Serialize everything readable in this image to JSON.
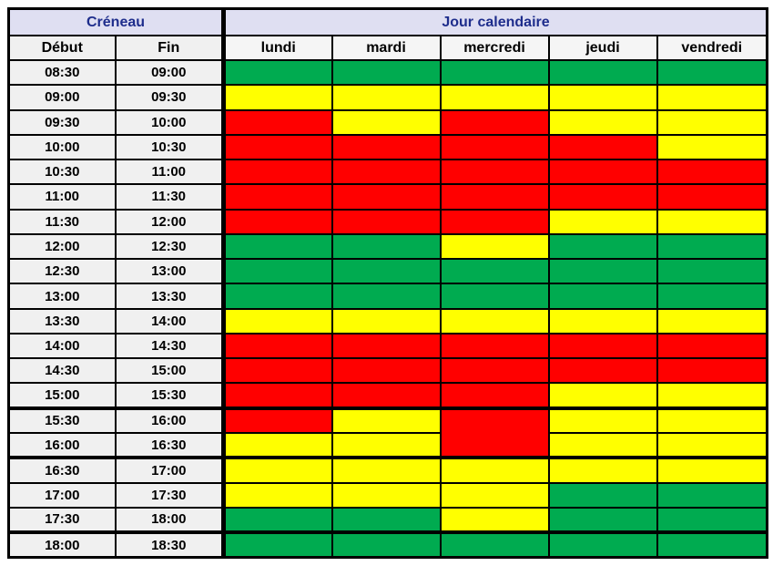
{
  "header": {
    "creneau_label": "Créneau",
    "jour_label": "Jour calendaire",
    "debut_label": "Début",
    "fin_label": "Fin",
    "days": [
      "lundi",
      "mardi",
      "mercredi",
      "jeudi",
      "vendredi"
    ]
  },
  "colors": {
    "slot_green": "#00ab50",
    "slot_yellow": "#ffff00",
    "slot_red": "#ff0000",
    "group_header_bg": "#dfdff2",
    "group_header_text": "#1e2d8c",
    "time_cell_bg": "#f0f0f0",
    "day_header_bg": "#f5f5f5",
    "border": "#000000"
  },
  "rows": [
    {
      "debut": "08:30",
      "fin": "09:00",
      "cells": [
        "G",
        "G",
        "G",
        "G",
        "G"
      ]
    },
    {
      "debut": "09:00",
      "fin": "09:30",
      "cells": [
        "Y",
        "Y",
        "Y",
        "Y",
        "Y"
      ]
    },
    {
      "debut": "09:30",
      "fin": "10:00",
      "cells": [
        "R",
        "Y",
        "R",
        "Y",
        "Y"
      ]
    },
    {
      "debut": "10:00",
      "fin": "10:30",
      "cells": [
        "R",
        "R",
        "R",
        "R",
        "Y"
      ]
    },
    {
      "debut": "10:30",
      "fin": "11:00",
      "cells": [
        "R",
        "R",
        "R",
        "R",
        "R"
      ]
    },
    {
      "debut": "11:00",
      "fin": "11:30",
      "cells": [
        "R",
        "R",
        "R",
        "R",
        "R"
      ]
    },
    {
      "debut": "11:30",
      "fin": "12:00",
      "cells": [
        "R",
        "R",
        "R",
        "Y",
        "Y"
      ]
    },
    {
      "debut": "12:00",
      "fin": "12:30",
      "cells": [
        "G",
        "G",
        "Y",
        "G",
        "G"
      ]
    },
    {
      "debut": "12:30",
      "fin": "13:00",
      "cells": [
        "G",
        "G",
        "G",
        "G",
        "G"
      ]
    },
    {
      "debut": "13:00",
      "fin": "13:30",
      "cells": [
        "G",
        "G",
        "G",
        "G",
        "G"
      ]
    },
    {
      "debut": "13:30",
      "fin": "14:00",
      "cells": [
        "Y",
        "Y",
        "Y",
        "Y",
        "Y"
      ]
    },
    {
      "debut": "14:00",
      "fin": "14:30",
      "cells": [
        "R",
        "R",
        "R",
        "R",
        "R"
      ]
    },
    {
      "debut": "14:30",
      "fin": "15:00",
      "cells": [
        "R",
        "R",
        "R",
        "R",
        "R"
      ]
    },
    {
      "debut": "15:00",
      "fin": "15:30",
      "cells": [
        "R",
        "R",
        "R",
        "Y",
        "Y"
      ],
      "thick_bottom": true
    },
    {
      "debut": "15:30",
      "fin": "16:00",
      "cells": [
        "R",
        "Y",
        {
          "color": "R",
          "rowspan": 2,
          "thick_bottom": true
        },
        "Y",
        "Y"
      ]
    },
    {
      "debut": "16:00",
      "fin": "16:30",
      "cells": [
        "Y",
        "Y",
        null,
        "Y",
        "Y"
      ],
      "thick_bottom": true
    },
    {
      "debut": "16:30",
      "fin": "17:00",
      "cells": [
        "Y",
        "Y",
        "Y",
        "Y",
        "Y"
      ]
    },
    {
      "debut": "17:00",
      "fin": "17:30",
      "cells": [
        "Y",
        "Y",
        "Y",
        "G",
        "G"
      ]
    },
    {
      "debut": "17:30",
      "fin": "18:00",
      "cells": [
        "G",
        "G",
        "Y",
        "G",
        "G"
      ],
      "thick_bottom": true
    },
    {
      "debut": "18:00",
      "fin": "18:30",
      "cells": [
        "G",
        "G",
        "G",
        "G",
        "G"
      ]
    }
  ]
}
